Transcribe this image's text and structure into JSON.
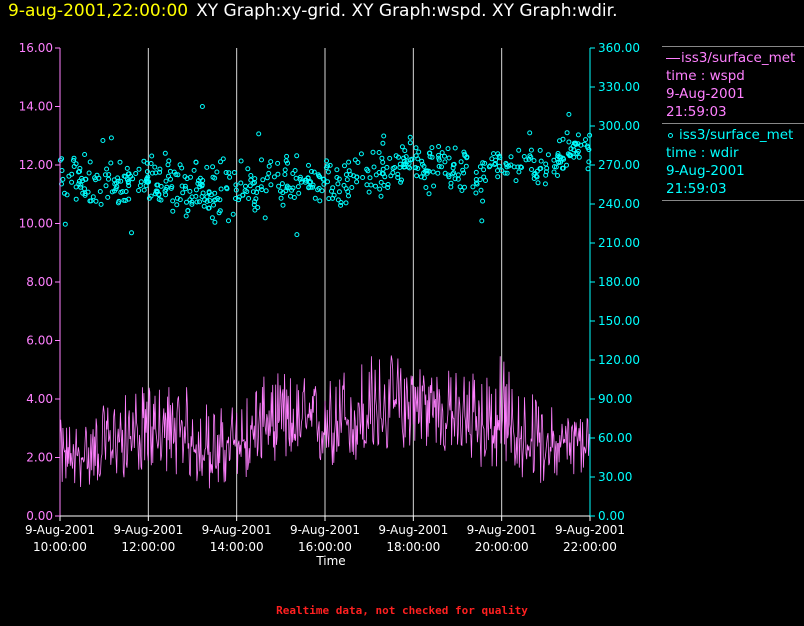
{
  "header": {
    "timestamp": "9-aug-2001,22:00:00",
    "title": "XY Graph:xy-grid.  XY Graph:wspd.  XY Graph:wdir."
  },
  "legend": [
    {
      "name_prefix": "—",
      "name": "iss3/surface_met",
      "line2": "time : wspd",
      "line3": "9-Aug-2001",
      "line4": "21:59:03",
      "color": "#ff80ff"
    },
    {
      "name_prefix": "o",
      "name": "iss3/surface_met",
      "line2": "time : wdir",
      "line3": "9-Aug-2001",
      "line4": "21:59:03",
      "color": "#00ffff"
    }
  ],
  "footer": "Realtime data, not checked for quality",
  "colors": {
    "background": "#000000",
    "left_axis": "#ff80ff",
    "right_axis": "#00ffff",
    "grid": "#ffffff",
    "time_axis": "#ffffff"
  },
  "chart_data": {
    "type": "line",
    "xlabel": "Time",
    "x_ticks": [
      {
        "date": "9-Aug-2001",
        "time": "10:00:00",
        "hour": 10
      },
      {
        "date": "9-Aug-2001",
        "time": "12:00:00",
        "hour": 12
      },
      {
        "date": "9-Aug-2001",
        "time": "14:00:00",
        "hour": 14
      },
      {
        "date": "9-Aug-2001",
        "time": "16:00:00",
        "hour": 16
      },
      {
        "date": "9-Aug-2001",
        "time": "18:00:00",
        "hour": 18
      },
      {
        "date": "9-Aug-2001",
        "time": "20:00:00",
        "hour": 20
      },
      {
        "date": "9-Aug-2001",
        "time": "22:00:00",
        "hour": 22
      }
    ],
    "xlim": [
      10,
      22
    ],
    "grid": "vertical",
    "y_left": {
      "ylim": [
        0,
        16
      ],
      "ticks": [
        "0.00",
        "2.00",
        "4.00",
        "6.00",
        "8.00",
        "10.00",
        "12.00",
        "14.00",
        "16.00"
      ]
    },
    "y_right": {
      "ylim": [
        0,
        360
      ],
      "ticks": [
        "0.00",
        "30.00",
        "60.00",
        "90.00",
        "120.00",
        "150.00",
        "180.00",
        "210.00",
        "240.00",
        "270.00",
        "300.00",
        "330.00",
        "360.00"
      ]
    },
    "series": [
      {
        "name": "iss3/surface_met time : wspd",
        "axis": "left",
        "style": "line",
        "color": "#ff80ff",
        "x": [
          10.0,
          10.5,
          11.0,
          11.5,
          12.0,
          12.5,
          13.0,
          13.5,
          14.0,
          14.5,
          15.0,
          15.5,
          16.0,
          16.5,
          17.0,
          17.5,
          18.0,
          18.5,
          19.0,
          19.5,
          20.0,
          20.5,
          21.0,
          21.5,
          22.0
        ],
        "mean": [
          2.1,
          2.0,
          2.4,
          2.7,
          2.8,
          2.7,
          2.4,
          2.2,
          2.4,
          3.0,
          3.2,
          3.1,
          3.0,
          3.3,
          3.2,
          3.6,
          4.0,
          3.7,
          3.5,
          3.1,
          2.9,
          2.6,
          2.4,
          2.5,
          2.6
        ],
        "min": [
          1.0,
          0.9,
          1.2,
          1.3,
          1.6,
          1.5,
          1.1,
          0.8,
          0.9,
          1.8,
          1.9,
          1.7,
          1.6,
          1.5,
          2.0,
          2.1,
          2.4,
          2.2,
          1.9,
          1.6,
          1.5,
          1.2,
          1.1,
          1.3,
          1.2
        ],
        "max": [
          3.3,
          3.2,
          3.8,
          4.2,
          4.5,
          4.6,
          4.4,
          3.7,
          3.9,
          4.7,
          5.0,
          4.8,
          4.6,
          5.3,
          5.6,
          5.6,
          5.4,
          5.1,
          5.0,
          5.2,
          5.6,
          4.4,
          3.9,
          3.5,
          3.6
        ]
      },
      {
        "name": "iss3/surface_met time : wdir",
        "axis": "right",
        "style": "points",
        "color": "#00ffff",
        "x": [
          10.0,
          10.5,
          11.0,
          11.5,
          12.0,
          12.5,
          13.0,
          13.5,
          14.0,
          14.5,
          15.0,
          15.5,
          16.0,
          16.5,
          17.0,
          17.5,
          18.0,
          18.5,
          19.0,
          19.5,
          20.0,
          20.5,
          21.0,
          21.5,
          22.0
        ],
        "mean": [
          262,
          254,
          258,
          256,
          258,
          256,
          250,
          246,
          250,
          255,
          258,
          259,
          254,
          256,
          262,
          268,
          272,
          270,
          266,
          261,
          270,
          272,
          268,
          278,
          287
        ],
        "spread": [
          22,
          20,
          22,
          20,
          22,
          24,
          26,
          26,
          24,
          22,
          22,
          20,
          22,
          20,
          20,
          20,
          20,
          18,
          18,
          18,
          14,
          14,
          14,
          18,
          18
        ]
      }
    ]
  }
}
